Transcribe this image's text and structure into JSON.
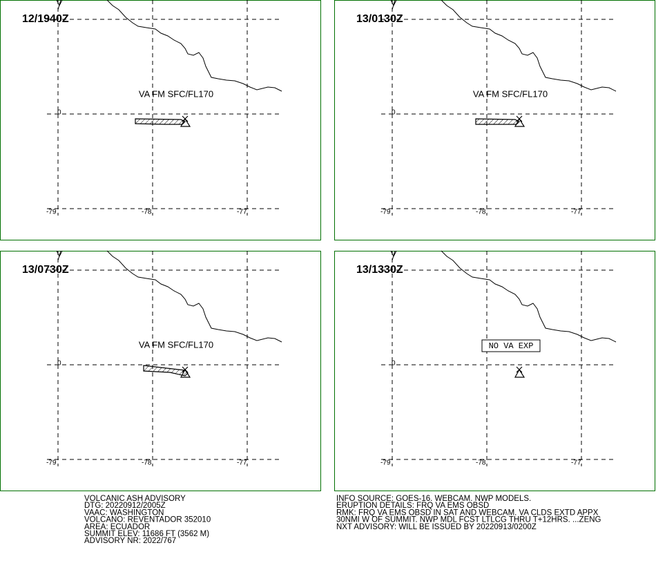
{
  "panels": [
    {
      "time": "12/1940Z",
      "annotation": "VA FM SFC/FL170",
      "ash": true
    },
    {
      "time": "13/0130Z",
      "annotation": "VA FM SFC/FL170",
      "ash": true
    },
    {
      "time": "13/0730Z",
      "annotation": "VA FM SFC/FL170",
      "ash": true
    },
    {
      "time": "13/1330Z",
      "annotation": "NO VA EXP",
      "ash": false,
      "boxed": true
    }
  ],
  "grid": {
    "lat_labels": [
      "0"
    ],
    "lon_labels": [
      "-79",
      "-78",
      "-77"
    ]
  },
  "advisory": {
    "left": [
      "VOLCANIC ASH ADVISORY",
      "DTG: 20220912/2005Z",
      "VAAC: WASHINGTON",
      "VOLCANO: REVENTADOR 352010",
      "AREA: ECUADOR",
      "SUMMIT ELEV: 11686 FT (3562 M)",
      "ADVISORY NR: 2022/767"
    ],
    "right": [
      "INFO SOURCE: GOES-16. WEBCAM. NWP MODELS.",
      "ERUPTION DETAILS: FRQ VA EMS OBSD",
      "RMK: FRQ VA EMS OBSD IN SAT AND WEBCAM. VA CLDS EXTD APPX",
      "30NMI W OF SUMMIT. NWP MDL FCST LTLCG THRU T+12HRS. ...ZENG",
      "NXT ADVISORY: WILL BE ISSUED BY 20220913/0200Z"
    ]
  }
}
